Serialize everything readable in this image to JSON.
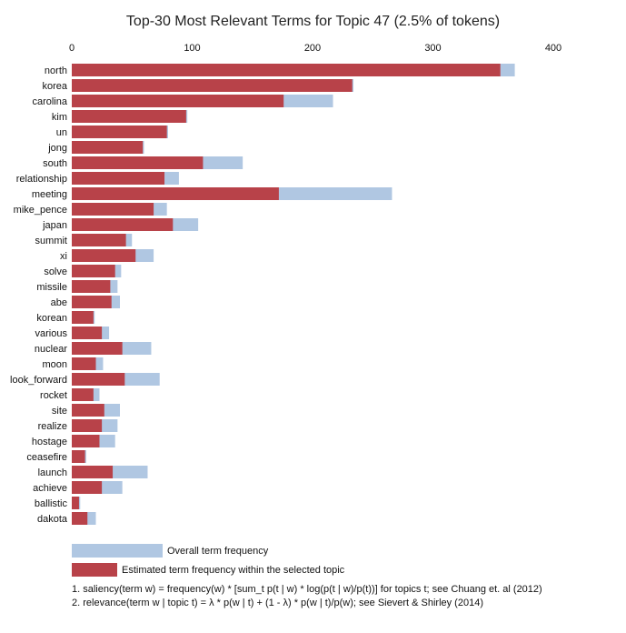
{
  "chart_data": {
    "type": "bar",
    "orientation": "horizontal",
    "title": "Top-30 Most Relevant Terms for Topic 47 (2.5% of tokens)",
    "xlim": [
      0,
      400
    ],
    "x_ticks": [
      0,
      100,
      200,
      300,
      400
    ],
    "x_tick_labels": [
      "0",
      "100",
      "200",
      "300",
      "400"
    ],
    "x_axis_position": "top",
    "grid": false,
    "legend_position": "bottom-left",
    "categories": [
      "north",
      "korea",
      "carolina",
      "kim",
      "un",
      "jong",
      "south",
      "relationship",
      "meeting",
      "mike_pence",
      "japan",
      "summit",
      "xi",
      "solve",
      "missile",
      "abe",
      "korean",
      "various",
      "nuclear",
      "moon",
      "look_forward",
      "rocket",
      "site",
      "realize",
      "hostage",
      "ceasefire",
      "launch",
      "achieve",
      "ballistic",
      "dakota"
    ],
    "series": [
      {
        "name": "Overall term frequency",
        "color": "#b0c7e2",
        "values": [
          368,
          234,
          217,
          96,
          80,
          60,
          142,
          89,
          266,
          79,
          105,
          50,
          68,
          41,
          38,
          40,
          19,
          31,
          66,
          26,
          73,
          23,
          40,
          38,
          36,
          12,
          63,
          42,
          7,
          20
        ]
      },
      {
        "name": "Estimated term frequency within the selected topic",
        "color": "#b84249",
        "values": [
          356,
          233,
          176,
          95,
          79,
          59,
          109,
          77,
          172,
          68,
          84,
          45,
          53,
          36,
          32,
          33,
          18,
          25,
          42,
          20,
          44,
          18,
          27,
          25,
          23,
          11,
          34,
          25,
          6,
          13
        ]
      }
    ]
  },
  "footnotes": [
    "1. saliency(term w) = frequency(w) * [sum_t p(t | w) * log(p(t | w)/p(t))] for topics t; see Chuang et. al (2012)",
    "2. relevance(term w | topic t) = λ * p(w | t) + (1 - λ) * p(w | t)/p(w); see Sievert & Shirley (2014)"
  ]
}
